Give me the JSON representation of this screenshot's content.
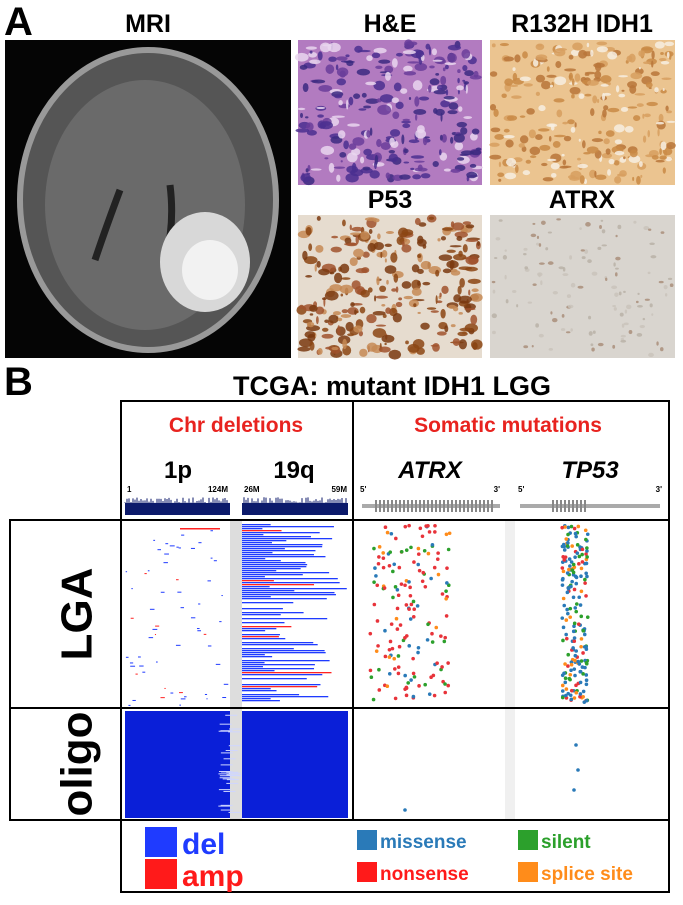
{
  "panel_a": {
    "label": "A",
    "mri": "MRI",
    "he": "H&E",
    "idh1": "R132H IDH1",
    "p53": "P53",
    "atrx": "ATRX"
  },
  "panel_b": {
    "label": "B",
    "title": "TCGA: mutant IDH1 LGG",
    "chr_deletions": {
      "title": "Chr deletions",
      "arms": [
        {
          "name": "1p",
          "start": "1",
          "end": "124M"
        },
        {
          "name": "19q",
          "start": "26M",
          "end": "59M"
        }
      ]
    },
    "somatic_mutations": {
      "title": "Somatic mutations",
      "genes": [
        {
          "name": "ATRX",
          "five": "5'",
          "three": "3'"
        },
        {
          "name": "TP53",
          "five": "5'",
          "three": "3'"
        }
      ]
    },
    "rows": [
      "LGA",
      "oligo"
    ],
    "legend": {
      "del": "del",
      "amp": "amp",
      "missense": "missense",
      "silent": "silent",
      "nonsense": "nonsense",
      "splice_site": "splice site"
    }
  }
}
